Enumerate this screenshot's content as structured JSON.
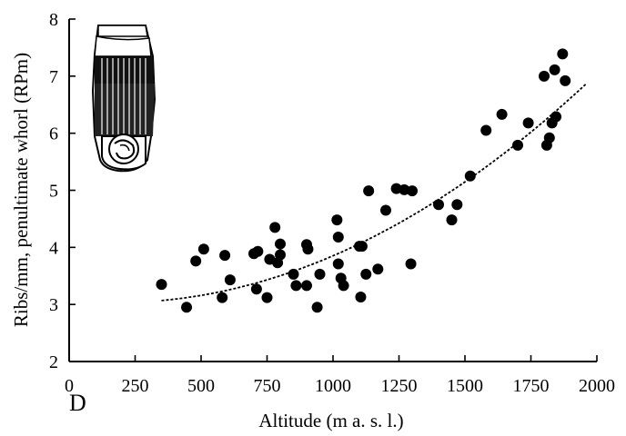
{
  "panel_label": "D",
  "chart_data": {
    "type": "scatter",
    "xlabel": "Altitude (m a. s. l.)",
    "ylabel": "Ribs/mm, penultimate whorl (RPm)",
    "xlim": [
      0,
      2000
    ],
    "ylim": [
      2,
      8
    ],
    "xticks": [
      0,
      250,
      500,
      750,
      1000,
      1250,
      1500,
      1750,
      2000
    ],
    "yticks": [
      2,
      3,
      4,
      5,
      6,
      7,
      8
    ],
    "grid": false,
    "trend": {
      "type": "quadratic",
      "x_range": [
        350,
        1960
      ],
      "points": [
        [
          350,
          3.1
        ],
        [
          600,
          3.25
        ],
        [
          900,
          3.6
        ],
        [
          1200,
          4.25
        ],
        [
          1500,
          5.2
        ],
        [
          1700,
          5.95
        ],
        [
          1960,
          6.78
        ]
      ]
    },
    "points": [
      [
        350,
        3.35
      ],
      [
        445,
        2.95
      ],
      [
        480,
        3.76
      ],
      [
        510,
        3.97
      ],
      [
        580,
        3.12
      ],
      [
        590,
        3.86
      ],
      [
        610,
        3.43
      ],
      [
        700,
        3.89
      ],
      [
        710,
        3.27
      ],
      [
        715,
        3.93
      ],
      [
        750,
        3.12
      ],
      [
        760,
        3.79
      ],
      [
        780,
        4.35
      ],
      [
        790,
        3.73
      ],
      [
        800,
        3.87
      ],
      [
        800,
        4.06
      ],
      [
        850,
        3.53
      ],
      [
        860,
        3.33
      ],
      [
        900,
        3.33
      ],
      [
        900,
        4.05
      ],
      [
        905,
        3.97
      ],
      [
        940,
        2.95
      ],
      [
        950,
        3.53
      ],
      [
        1015,
        4.48
      ],
      [
        1020,
        4.18
      ],
      [
        1020,
        3.71
      ],
      [
        1030,
        3.46
      ],
      [
        1040,
        3.33
      ],
      [
        1100,
        4.02
      ],
      [
        1105,
        3.13
      ],
      [
        1110,
        4.02
      ],
      [
        1125,
        3.53
      ],
      [
        1135,
        4.99
      ],
      [
        1170,
        3.62
      ],
      [
        1200,
        4.65
      ],
      [
        1240,
        5.03
      ],
      [
        1270,
        5.01
      ],
      [
        1295,
        3.71
      ],
      [
        1300,
        4.99
      ],
      [
        1400,
        4.75
      ],
      [
        1450,
        4.48
      ],
      [
        1470,
        4.75
      ],
      [
        1520,
        5.25
      ],
      [
        1580,
        6.05
      ],
      [
        1640,
        6.33
      ],
      [
        1700,
        5.79
      ],
      [
        1740,
        6.18
      ],
      [
        1800,
        7.0
      ],
      [
        1810,
        5.79
      ],
      [
        1820,
        5.92
      ],
      [
        1830,
        6.18
      ],
      [
        1840,
        7.11
      ],
      [
        1845,
        6.29
      ],
      [
        1870,
        7.39
      ],
      [
        1880,
        6.92
      ]
    ]
  }
}
